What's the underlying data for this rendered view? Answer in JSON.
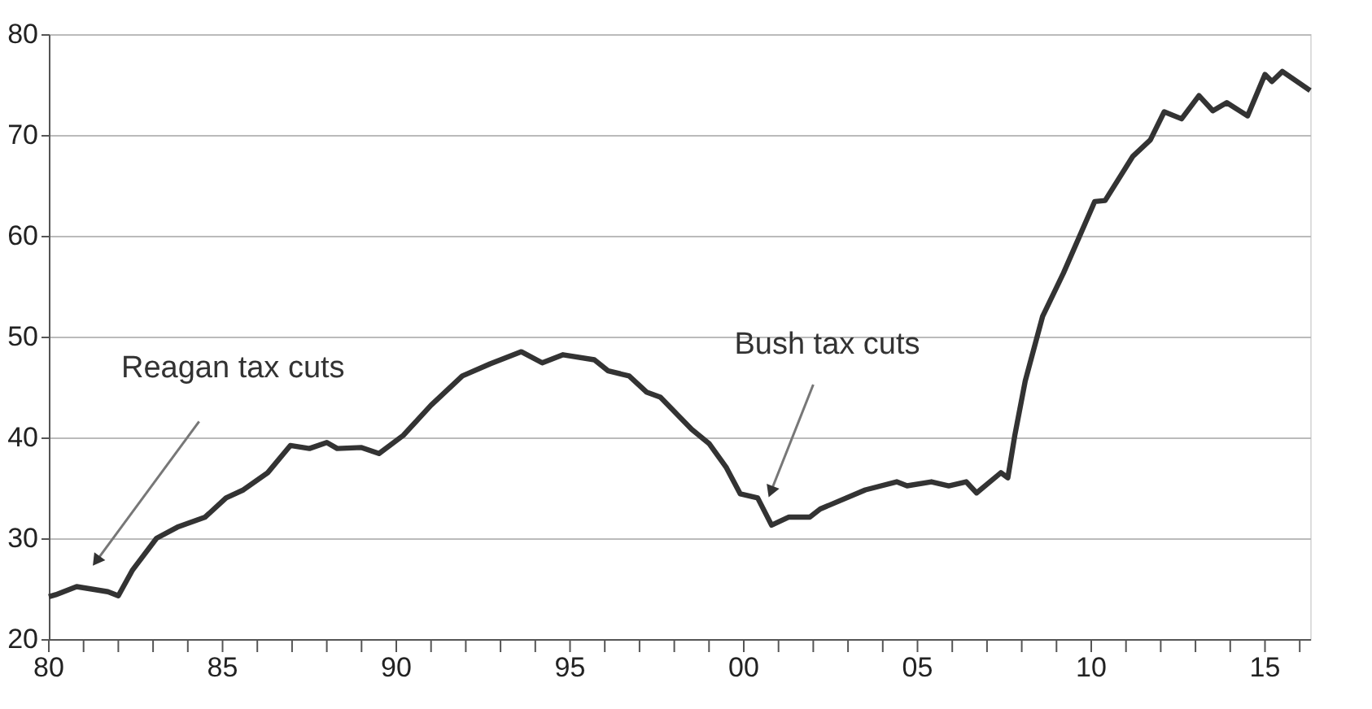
{
  "chart_data": {
    "type": "line",
    "x": [
      1980.0,
      1980.2,
      1980.8,
      1981.7,
      1982.0,
      1982.4,
      1983.1,
      1983.7,
      1984.5,
      1985.1,
      1985.6,
      1986.3,
      1986.95,
      1987.5,
      1988.0,
      1988.3,
      1989.0,
      1989.5,
      1990.2,
      1991.0,
      1991.9,
      1992.7,
      1993.6,
      1994.2,
      1994.8,
      1995.7,
      1996.1,
      1996.7,
      1997.2,
      1997.6,
      1998.5,
      1999.0,
      1999.5,
      1999.9,
      2000.4,
      2000.8,
      2001.3,
      2001.9,
      2002.2,
      2003.5,
      2004.4,
      2004.7,
      2005.4,
      2005.9,
      2006.4,
      2006.7,
      2007.4,
      2007.6,
      2007.8,
      2008.1,
      2008.6,
      2009.2,
      2010.1,
      2010.4,
      2011.2,
      2011.7,
      2012.1,
      2012.6,
      2013.1,
      2013.5,
      2013.9,
      2014.5,
      2015.0,
      2015.2,
      2015.5,
      2016.3
    ],
    "series": [
      {
        "color": "#333333",
        "values": [
          24.2,
          24.4,
          25.2,
          24.7,
          24.3,
          26.8,
          30.0,
          31.1,
          32.1,
          34.0,
          34.8,
          36.5,
          39.2,
          38.9,
          39.5,
          38.9,
          39.0,
          38.4,
          40.2,
          43.2,
          46.1,
          47.3,
          48.5,
          47.4,
          48.2,
          47.7,
          46.6,
          46.1,
          44.5,
          44.0,
          40.8,
          39.4,
          37.0,
          34.4,
          34.0,
          31.3,
          32.1,
          32.1,
          32.9,
          34.8,
          35.6,
          35.2,
          35.6,
          35.2,
          35.6,
          34.5,
          36.5,
          36.0,
          40.2,
          45.6,
          52.0,
          56.3,
          63.4,
          63.5,
          67.9,
          69.5,
          72.3,
          71.6,
          73.9,
          72.4,
          73.2,
          71.9,
          76.0,
          75.3,
          76.3,
          74.4
        ]
      }
    ],
    "xlim": [
      1980,
      2016.3
    ],
    "xticks": [
      {
        "value": 1980,
        "label": "80"
      },
      {
        "value": 1981,
        "label": null
      },
      {
        "value": 1982,
        "label": null
      },
      {
        "value": 1983,
        "label": null
      },
      {
        "value": 1984,
        "label": null
      },
      {
        "value": 1985,
        "label": "85"
      },
      {
        "value": 1986,
        "label": null
      },
      {
        "value": 1987,
        "label": null
      },
      {
        "value": 1988,
        "label": null
      },
      {
        "value": 1989,
        "label": null
      },
      {
        "value": 1990,
        "label": "90"
      },
      {
        "value": 1991,
        "label": null
      },
      {
        "value": 1992,
        "label": null
      },
      {
        "value": 1993,
        "label": null
      },
      {
        "value": 1994,
        "label": null
      },
      {
        "value": 1995,
        "label": "95"
      },
      {
        "value": 1996,
        "label": null
      },
      {
        "value": 1997,
        "label": null
      },
      {
        "value": 1998,
        "label": null
      },
      {
        "value": 1999,
        "label": null
      },
      {
        "value": 2000,
        "label": "00"
      },
      {
        "value": 2001,
        "label": null
      },
      {
        "value": 2002,
        "label": null
      },
      {
        "value": 2003,
        "label": null
      },
      {
        "value": 2004,
        "label": null
      },
      {
        "value": 2005,
        "label": "05"
      },
      {
        "value": 2006,
        "label": null
      },
      {
        "value": 2007,
        "label": null
      },
      {
        "value": 2008,
        "label": null
      },
      {
        "value": 2009,
        "label": null
      },
      {
        "value": 2010,
        "label": "10"
      },
      {
        "value": 2011,
        "label": null
      },
      {
        "value": 2012,
        "label": null
      },
      {
        "value": 2013,
        "label": null
      },
      {
        "value": 2014,
        "label": null
      },
      {
        "value": 2015,
        "label": "15"
      },
      {
        "value": 2016,
        "label": null
      }
    ],
    "ylim": [
      20,
      80
    ],
    "yticks": [
      20,
      30,
      40,
      50,
      60,
      70,
      80
    ],
    "grid": "y",
    "line_style": "solid",
    "marker": "none",
    "annotations": [
      {
        "text": "Reagan tax cuts",
        "x": 1981.4,
        "y": 27.9
      },
      {
        "text": "Bush tax cuts",
        "x": 2000.8,
        "y": 34.8
      }
    ]
  }
}
